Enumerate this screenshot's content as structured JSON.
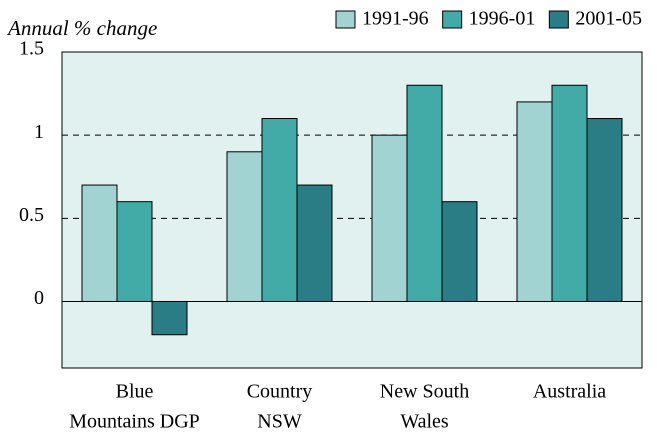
{
  "chart_data": {
    "type": "bar",
    "y_label": "Annual % change",
    "categories": [
      [
        "Blue",
        "Mountains DGP"
      ],
      [
        "Country",
        "NSW"
      ],
      [
        "New South",
        "Wales"
      ],
      [
        "Australia"
      ]
    ],
    "series": [
      {
        "name": "1991-96",
        "color": "#a0d3d1",
        "values": [
          0.7,
          0.9,
          1.0,
          1.2
        ]
      },
      {
        "name": "1996-01",
        "color": "#42aba8",
        "values": [
          0.6,
          1.1,
          1.3,
          1.3
        ]
      },
      {
        "name": "2001-05",
        "color": "#2a7c85",
        "values": [
          -0.2,
          0.7,
          0.6,
          1.1
        ]
      }
    ],
    "ylim": [
      -0.4,
      1.5
    ],
    "yticks": [
      0,
      0.5,
      1,
      1.5
    ],
    "grid": true,
    "legend": "top-right",
    "background": "#e1f1ef"
  }
}
